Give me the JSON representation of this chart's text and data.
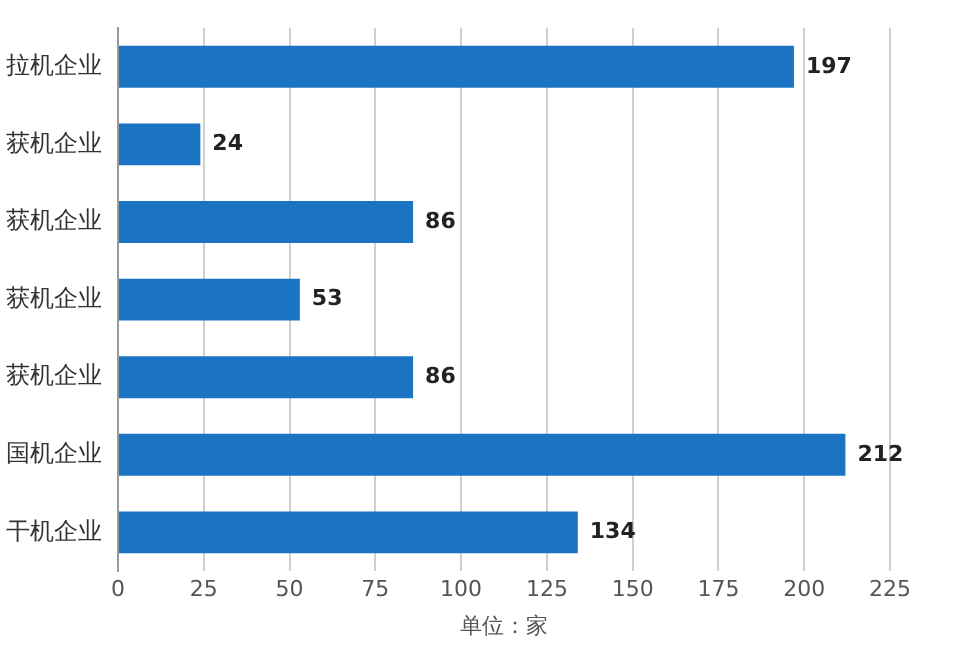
{
  "chart_data": {
    "type": "bar",
    "orientation": "horizontal",
    "categories": [
      "拉机企业",
      "获机企业",
      "获机企业",
      "获机企业",
      "获机企业",
      "国机企业",
      "干机企业"
    ],
    "values": [
      197,
      24,
      86,
      53,
      86,
      212,
      134
    ],
    "color": "#1a73c3",
    "data_labels": true,
    "xlim": [
      0,
      225
    ],
    "xticks": [
      0,
      25,
      50,
      75,
      100,
      125,
      150,
      175,
      200,
      225
    ],
    "xlabel": "单位：家",
    "grid": "x",
    "legend": false
  }
}
